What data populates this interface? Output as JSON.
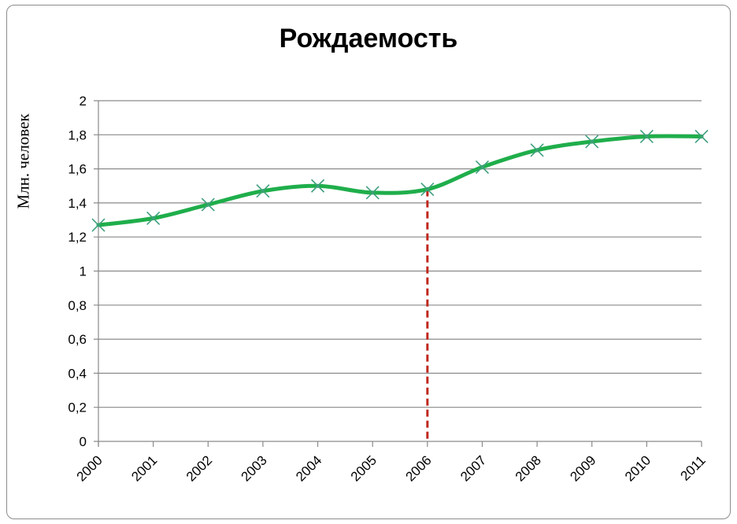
{
  "chart_data": {
    "type": "line",
    "title": "Рождаемость",
    "ylabel": "Млн. человек",
    "xlabel": "",
    "categories": [
      "2000",
      "2001",
      "2002",
      "2003",
      "2004",
      "2005",
      "2006",
      "2007",
      "2008",
      "2009",
      "2010",
      "2011"
    ],
    "series": [
      {
        "values": [
          1.27,
          1.31,
          1.39,
          1.47,
          1.5,
          1.46,
          1.48,
          1.61,
          1.71,
          1.76,
          1.79,
          1.79
        ]
      }
    ],
    "ylim": [
      0,
      2
    ],
    "yticks": [
      "0",
      "0,2",
      "0,4",
      "0,6",
      "0,8",
      "1",
      "1,2",
      "1,4",
      "1,6",
      "1,8",
      "2"
    ],
    "grid": true,
    "marker": "x",
    "highlight_category": "2006",
    "colors": {
      "line": "#1fae4b",
      "marker": "#3f9f7f",
      "highlight": "#c0281e",
      "grid": "#8a8a8a"
    }
  }
}
